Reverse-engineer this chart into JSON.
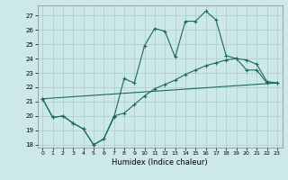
{
  "title": "",
  "xlabel": "Humidex (Indice chaleur)",
  "bg_color": "#cce8e8",
  "grid_color": "#aacccc",
  "line_color": "#1a6b5a",
  "xlim": [
    -0.5,
    23.5
  ],
  "ylim": [
    17.8,
    27.7
  ],
  "yticks": [
    18,
    19,
    20,
    21,
    22,
    23,
    24,
    25,
    26,
    27
  ],
  "xticks": [
    0,
    1,
    2,
    3,
    4,
    5,
    6,
    7,
    8,
    9,
    10,
    11,
    12,
    13,
    14,
    15,
    16,
    17,
    18,
    19,
    20,
    21,
    22,
    23
  ],
  "series1_x": [
    0,
    1,
    2,
    3,
    4,
    5,
    6,
    7,
    8,
    9,
    10,
    11,
    12,
    13,
    14,
    15,
    16,
    17,
    18,
    19,
    20,
    21,
    22,
    23
  ],
  "series1_y": [
    21.2,
    19.9,
    20.0,
    19.5,
    19.1,
    18.0,
    18.4,
    19.9,
    22.6,
    22.3,
    24.9,
    26.1,
    25.9,
    24.1,
    26.6,
    26.6,
    27.3,
    26.7,
    24.2,
    24.0,
    23.2,
    23.2,
    22.3,
    22.3
  ],
  "series2_x": [
    0,
    1,
    2,
    3,
    4,
    5,
    6,
    7,
    8,
    9,
    10,
    11,
    12,
    13,
    14,
    15,
    16,
    17,
    18,
    19,
    20,
    21,
    22,
    23
  ],
  "series2_y": [
    21.2,
    19.9,
    20.0,
    19.5,
    19.1,
    18.0,
    18.4,
    20.0,
    20.2,
    20.8,
    21.4,
    21.9,
    22.2,
    22.5,
    22.9,
    23.2,
    23.5,
    23.7,
    23.9,
    24.0,
    23.9,
    23.6,
    22.4,
    22.3
  ],
  "series3_x": [
    0,
    23
  ],
  "series3_y": [
    21.2,
    22.3
  ]
}
